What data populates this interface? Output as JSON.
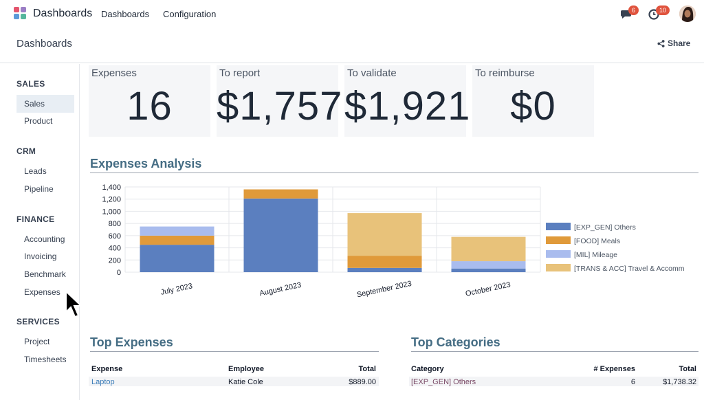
{
  "app": {
    "title": "Dashboards",
    "nav": [
      "Dashboards",
      "Configuration"
    ]
  },
  "systray": {
    "messages_count": "6",
    "activities_count": "10"
  },
  "control": {
    "breadcrumb": "Dashboards",
    "share_label": "Share"
  },
  "sidebar": {
    "sections": [
      {
        "title": "SALES",
        "items": [
          "Sales",
          "Product"
        ]
      },
      {
        "title": "CRM",
        "items": [
          "Leads",
          "Pipeline"
        ]
      },
      {
        "title": "FINANCE",
        "items": [
          "Accounting",
          "Invoicing",
          "Benchmark",
          "Expenses"
        ]
      },
      {
        "title": "SERVICES",
        "items": [
          "Project",
          "Timesheets"
        ]
      }
    ],
    "active_item": "Sales"
  },
  "kpis": [
    {
      "label": "Expenses",
      "value": "16"
    },
    {
      "label": "To report",
      "value": "$1,757"
    },
    {
      "label": "To validate",
      "value": "$1,921"
    },
    {
      "label": "To reimburse",
      "value": "$0"
    }
  ],
  "analysis": {
    "title": "Expenses Analysis"
  },
  "chart_data": {
    "type": "bar",
    "stacked": true,
    "title": "Expenses Analysis",
    "categories": [
      "July 2023",
      "August 2023",
      "September 2023",
      "October 2023"
    ],
    "series": [
      {
        "name": "[EXP_GEN] Others",
        "color": "#5b7fbf",
        "values": [
          450,
          1210,
          70,
          60
        ]
      },
      {
        "name": "[FOOD] Meals",
        "color": "#e09a3a",
        "values": [
          150,
          150,
          200,
          0
        ]
      },
      {
        "name": "[MIL] Mileage",
        "color": "#a9bcee",
        "values": [
          150,
          0,
          0,
          120
        ]
      },
      {
        "name": "[TRANS & ACC] Travel & Accommodation",
        "color": "#e8c27a",
        "values": [
          0,
          0,
          700,
          400
        ]
      }
    ],
    "legend_labels": [
      "[EXP_GEN] Others",
      "[FOOD] Meals",
      "[MIL] Mileage",
      "[TRANS & ACC] Travel & Accomm"
    ],
    "y_ticks": [
      "0",
      "200",
      "400",
      "600",
      "800",
      "1,000",
      "1,200",
      "1,400"
    ],
    "ylim": [
      0,
      1400
    ],
    "legend_position": "right"
  },
  "top_expenses": {
    "title": "Top Expenses",
    "headers": [
      "Expense",
      "Employee",
      "Total"
    ],
    "rows": [
      {
        "expense": "Laptop",
        "employee": "Katie Cole",
        "total": "$889.00"
      }
    ]
  },
  "top_categories": {
    "title": "Top Categories",
    "headers": [
      "Category",
      "# Expenses",
      "Total"
    ],
    "rows": [
      {
        "category": "[EXP_GEN] Others",
        "count": "6",
        "total": "$1,738.32"
      }
    ]
  },
  "colors": {
    "accent": "#456d84",
    "badge": "#e0533d",
    "link": "#3b7cb8"
  }
}
